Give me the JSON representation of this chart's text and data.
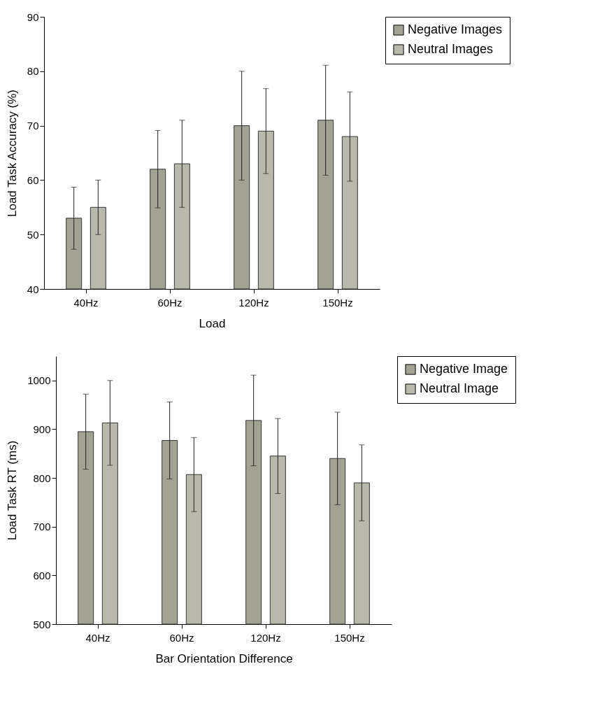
{
  "chart_data": [
    {
      "type": "bar",
      "xlabel": "Load",
      "ylabel": "Load Task Accuracy (%)",
      "categories": [
        "40Hz",
        "60Hz",
        "120Hz",
        "150Hz"
      ],
      "ylim": [
        40,
        90
      ],
      "yticks": [
        40,
        50,
        60,
        70,
        80,
        90
      ],
      "legend": "top right",
      "series": [
        {
          "name": "Negative Images",
          "color": "#a3a394",
          "values": [
            53,
            62,
            70,
            71
          ],
          "errors": [
            5.7,
            7.1,
            10,
            10.1
          ]
        },
        {
          "name": "Neutral Images",
          "color": "#b8b8ab",
          "values": [
            55,
            63,
            69,
            68
          ],
          "errors": [
            5,
            8,
            7.8,
            8.2
          ]
        }
      ]
    },
    {
      "type": "bar",
      "xlabel": "Bar Orientation Difference",
      "ylabel": "Load Task RT (ms)",
      "categories": [
        "40Hz",
        "60Hz",
        "120Hz",
        "150Hz"
      ],
      "ylim": [
        500,
        1050
      ],
      "yticks": [
        500,
        600,
        700,
        800,
        900,
        1000
      ],
      "legend": "top right",
      "series": [
        {
          "name": "Negative Image",
          "color": "#a3a394",
          "values": [
            895,
            877,
            918,
            840
          ],
          "errors": [
            77,
            79,
            93,
            95
          ]
        },
        {
          "name": "Neutral Image",
          "color": "#b8b8ab",
          "values": [
            913,
            807,
            845,
            790
          ],
          "errors": [
            87,
            76,
            77,
            78
          ]
        }
      ]
    }
  ]
}
